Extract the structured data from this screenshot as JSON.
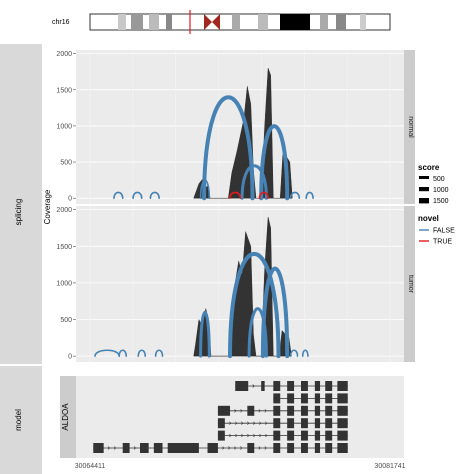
{
  "ideogram": {
    "chromosome": "chr16"
  },
  "tracks": {
    "splicing": "splicing",
    "model": "model"
  },
  "facets": [
    "normal",
    "tumor"
  ],
  "chart_data": {
    "type": "area",
    "ylabel": "Coverage",
    "ylim": [
      -80,
      2050
    ],
    "yticks": [
      0,
      500,
      1000,
      1500,
      2000
    ],
    "xlim": [
      30064411,
      30081741
    ],
    "xticks": [
      30064411,
      30081741
    ],
    "panels": [
      {
        "name": "normal",
        "coverage": [
          {
            "x": 30070400,
            "y": 0
          },
          {
            "x": 30070700,
            "y": 200
          },
          {
            "x": 30070900,
            "y": 260
          },
          {
            "x": 30071100,
            "y": 150
          },
          {
            "x": 30071250,
            "y": 180
          },
          {
            "x": 30071350,
            "y": 0
          },
          {
            "x": 30072400,
            "y": 0
          },
          {
            "x": 30072600,
            "y": 350
          },
          {
            "x": 30072900,
            "y": 650
          },
          {
            "x": 30073300,
            "y": 1100
          },
          {
            "x": 30073500,
            "y": 1550
          },
          {
            "x": 30073700,
            "y": 1300
          },
          {
            "x": 30073850,
            "y": 400
          },
          {
            "x": 30074000,
            "y": 0
          },
          {
            "x": 30074300,
            "y": 0
          },
          {
            "x": 30074500,
            "y": 1000
          },
          {
            "x": 30074700,
            "y": 1800
          },
          {
            "x": 30074850,
            "y": 1700
          },
          {
            "x": 30075000,
            "y": 0
          },
          {
            "x": 30075400,
            "y": 0
          },
          {
            "x": 30075550,
            "y": 600
          },
          {
            "x": 30075700,
            "y": 580
          },
          {
            "x": 30075800,
            "y": 560
          },
          {
            "x": 30075950,
            "y": 500
          },
          {
            "x": 30076100,
            "y": 0
          }
        ],
        "junctions": [
          {
            "start": 30065800,
            "end": 30066300,
            "score": 80,
            "novel": false
          },
          {
            "start": 30066900,
            "end": 30067400,
            "score": 80,
            "novel": false
          },
          {
            "start": 30067900,
            "end": 30068400,
            "score": 80,
            "novel": false
          },
          {
            "start": 30070800,
            "end": 30071300,
            "score": 250,
            "novel": false
          },
          {
            "start": 30071000,
            "end": 30073800,
            "score": 1400,
            "novel": false
          },
          {
            "start": 30073200,
            "end": 30074600,
            "score": 450,
            "novel": false
          },
          {
            "start": 30074300,
            "end": 30075800,
            "score": 1000,
            "novel": false
          },
          {
            "start": 30076000,
            "end": 30076500,
            "score": 80,
            "novel": false
          },
          {
            "start": 30076900,
            "end": 30077300,
            "score": 80,
            "novel": false
          },
          {
            "start": 30072500,
            "end": 30073100,
            "score": 80,
            "novel": true
          },
          {
            "start": 30074200,
            "end": 30074700,
            "score": 80,
            "novel": true
          }
        ]
      },
      {
        "name": "tumor",
        "coverage": [
          {
            "x": 30070400,
            "y": 0
          },
          {
            "x": 30070500,
            "y": 150
          },
          {
            "x": 30070700,
            "y": 500
          },
          {
            "x": 30070900,
            "y": 400
          },
          {
            "x": 30071100,
            "y": 650
          },
          {
            "x": 30071250,
            "y": 500
          },
          {
            "x": 30071400,
            "y": 0
          },
          {
            "x": 30072400,
            "y": 0
          },
          {
            "x": 30072600,
            "y": 500
          },
          {
            "x": 30072800,
            "y": 1000
          },
          {
            "x": 30073000,
            "y": 1300
          },
          {
            "x": 30073200,
            "y": 1100
          },
          {
            "x": 30073400,
            "y": 1700
          },
          {
            "x": 30073550,
            "y": 1600
          },
          {
            "x": 30073700,
            "y": 1500
          },
          {
            "x": 30073850,
            "y": 300
          },
          {
            "x": 30074000,
            "y": 0
          },
          {
            "x": 30074300,
            "y": 0
          },
          {
            "x": 30074500,
            "y": 1200
          },
          {
            "x": 30074700,
            "y": 1900
          },
          {
            "x": 30074850,
            "y": 1750
          },
          {
            "x": 30075000,
            "y": 0
          },
          {
            "x": 30075350,
            "y": 0
          },
          {
            "x": 30075500,
            "y": 350
          },
          {
            "x": 30075700,
            "y": 300
          },
          {
            "x": 30075900,
            "y": 250
          },
          {
            "x": 30076050,
            "y": 0
          }
        ],
        "junctions": [
          {
            "start": 30064700,
            "end": 30066100,
            "score": 80,
            "novel": false
          },
          {
            "start": 30066100,
            "end": 30066500,
            "score": 80,
            "novel": false
          },
          {
            "start": 30067200,
            "end": 30067600,
            "score": 80,
            "novel": false
          },
          {
            "start": 30068200,
            "end": 30068600,
            "score": 80,
            "novel": false
          },
          {
            "start": 30070800,
            "end": 30071300,
            "score": 600,
            "novel": false
          },
          {
            "start": 30072500,
            "end": 30075300,
            "score": 1400,
            "novel": false
          },
          {
            "start": 30073600,
            "end": 30074600,
            "score": 650,
            "novel": false
          },
          {
            "start": 30074400,
            "end": 30075800,
            "score": 1200,
            "novel": false
          },
          {
            "start": 30076000,
            "end": 30076400,
            "score": 80,
            "novel": false
          },
          {
            "start": 30076700,
            "end": 30077000,
            "score": 80,
            "novel": false
          }
        ]
      }
    ],
    "legend": {
      "score": {
        "title": "score",
        "entries": [
          "500",
          "1000",
          "1500"
        ]
      },
      "novel": {
        "title": "novel",
        "entries": [
          {
            "label": "FALSE",
            "color": "#4682b4"
          },
          {
            "label": "TRUE",
            "color": "#e41a1c"
          }
        ]
      }
    },
    "model": {
      "gene": "ALDOA",
      "transcripts": [
        {
          "exons": [
            [
              30072800,
              30073550
            ],
            [
              30074300,
              30074500
            ],
            [
              30075000,
              30075400
            ],
            [
              30075800,
              30076200
            ],
            [
              30076600,
              30077000
            ],
            [
              30077400,
              30077700
            ],
            [
              30078000,
              30078400
            ],
            [
              30078700,
              30079300
            ]
          ]
        },
        {
          "exons": [
            [
              30075000,
              30075400
            ],
            [
              30075800,
              30076200
            ],
            [
              30076600,
              30077000
            ],
            [
              30077400,
              30077700
            ],
            [
              30078000,
              30078400
            ],
            [
              30078700,
              30079300
            ]
          ]
        },
        {
          "exons": [
            [
              30071800,
              30072500
            ],
            [
              30073500,
              30073900
            ],
            [
              30075000,
              30075400
            ],
            [
              30075800,
              30076200
            ],
            [
              30076600,
              30077000
            ],
            [
              30077400,
              30077700
            ],
            [
              30078000,
              30078400
            ],
            [
              30078700,
              30079300
            ]
          ]
        },
        {
          "exons": [
            [
              30071800,
              30072200
            ],
            [
              30075000,
              30075400
            ],
            [
              30075800,
              30076200
            ],
            [
              30076600,
              30077000
            ],
            [
              30077400,
              30077700
            ],
            [
              30078000,
              30078400
            ],
            [
              30078700,
              30079300
            ]
          ]
        },
        {
          "exons": [
            [
              30071800,
              30072200
            ],
            [
              30075000,
              30075400
            ],
            [
              30075800,
              30076200
            ],
            [
              30076600,
              30077000
            ],
            [
              30077400,
              30077700
            ],
            [
              30078000,
              30078400
            ],
            [
              30078700,
              30079300
            ]
          ]
        },
        {
          "exons": [
            [
              30064600,
              30065200
            ],
            [
              30066300,
              30066700
            ],
            [
              30067300,
              30067800
            ],
            [
              30068100,
              30068600
            ],
            [
              30068900,
              30070700
            ],
            [
              30071200,
              30071800
            ],
            [
              30073500,
              30073900
            ],
            [
              30075000,
              30075400
            ],
            [
              30075800,
              30076200
            ],
            [
              30076600,
              30077000
            ],
            [
              30077400,
              30077700
            ],
            [
              30078000,
              30078400
            ],
            [
              30078700,
              30079300
            ]
          ]
        }
      ]
    }
  }
}
